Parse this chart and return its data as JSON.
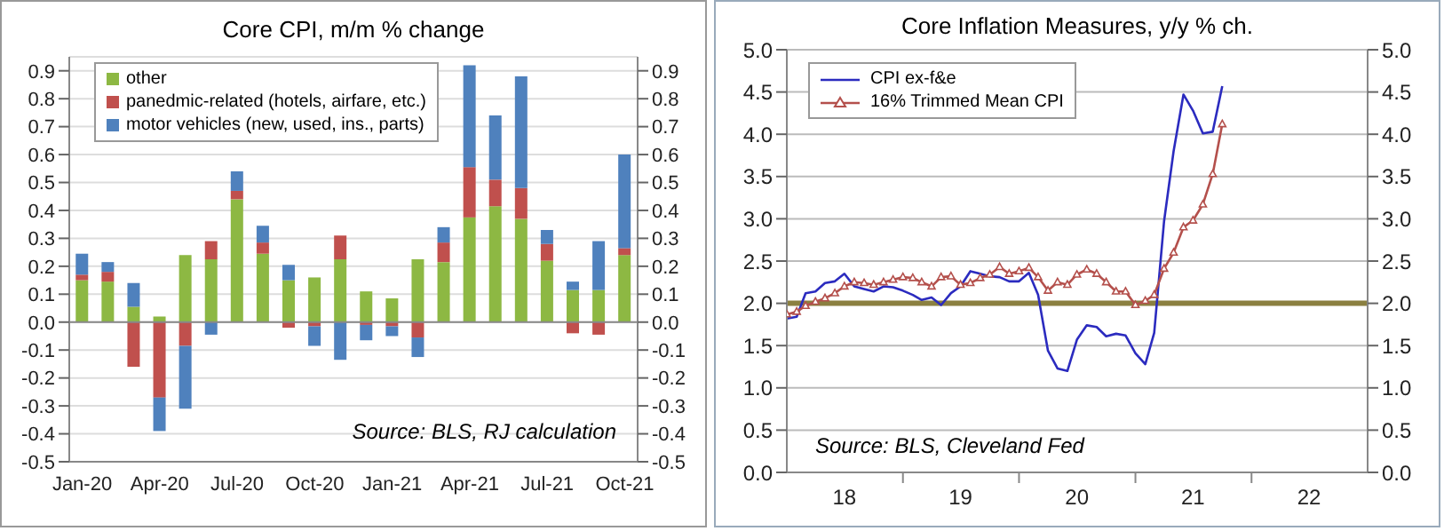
{
  "chart_data": [
    {
      "type": "bar",
      "title": "Core CPI, m/m % change",
      "stacked": true,
      "grid": "y",
      "legend": "top left",
      "categories": [
        "Jan-20",
        null,
        null,
        "Apr-20",
        null,
        null,
        "Jul-20",
        null,
        null,
        "Oct-20",
        null,
        null,
        "Jan-21",
        null,
        null,
        "Apr-21",
        null,
        null,
        "Jul-21",
        null,
        null,
        "Oct-21"
      ],
      "series": [
        {
          "name": "other",
          "color": "#8db843",
          "values": [
            0.15,
            0.145,
            0.055,
            0.02,
            0.24,
            0.225,
            0.44,
            0.245,
            0.15,
            0.16,
            0.225,
            0.11,
            0.085,
            0.225,
            0.215,
            0.375,
            0.415,
            0.37,
            0.22,
            0.115,
            0.115,
            0.24
          ]
        },
        {
          "name": "panedmic-related (hotels, airfare, etc.)",
          "color": "#c0504d",
          "values": [
            0.02,
            0.035,
            -0.16,
            -0.27,
            -0.085,
            0.065,
            0.03,
            0.04,
            -0.02,
            -0.015,
            0.085,
            -0.01,
            -0.015,
            -0.055,
            0.07,
            0.18,
            0.095,
            0.11,
            0.06,
            -0.04,
            -0.045,
            0.025
          ]
        },
        {
          "name": "motor vehicles (new, used, ins., parts)",
          "color": "#4f81bd",
          "values": [
            0.075,
            0.035,
            0.085,
            -0.12,
            -0.225,
            -0.045,
            0.07,
            0.06,
            0.055,
            -0.07,
            -0.135,
            -0.055,
            -0.035,
            -0.07,
            0.055,
            0.365,
            0.23,
            0.4,
            0.05,
            0.03,
            0.175,
            0.335
          ]
        }
      ],
      "ylim": [
        -0.5,
        0.95
      ],
      "yticks": [
        -0.5,
        -0.4,
        -0.3,
        -0.2,
        -0.1,
        {
          "value": 0,
          "label": "0.0"
        },
        0.1,
        0.2,
        0.3,
        0.4,
        0.5,
        0.6,
        0.7,
        0.8,
        0.9
      ],
      "y2lim": [
        -0.5,
        0.95
      ],
      "y2ticks": [
        -0.5,
        -0.4,
        -0.3,
        -0.2,
        -0.1,
        {
          "value": 0,
          "label": "0.0"
        },
        0.1,
        0.2,
        0.3,
        0.4,
        0.5,
        0.6,
        0.7,
        0.8,
        0.9
      ],
      "annotations": [
        "Source: BLS, RJ calculation"
      ]
    },
    {
      "type": "line",
      "title": "Core Inflation Measures, y/y % ch.",
      "grid": "y",
      "legend": "top left",
      "x": [
        "2018-01",
        "2018-02",
        "2018-03",
        "2018-04",
        "2018-05",
        "2018-06",
        "2018-07",
        "2018-08",
        "2018-09",
        "2018-10",
        "2018-11",
        "2018-12",
        "2019-01",
        "2019-02",
        "2019-03",
        "2019-04",
        "2019-05",
        "2019-06",
        "2019-07",
        "2019-08",
        "2019-09",
        "2019-10",
        "2019-11",
        "2019-12",
        "2020-01",
        "2020-02",
        "2020-03",
        "2020-04",
        "2020-05",
        "2020-06",
        "2020-07",
        "2020-08",
        "2020-09",
        "2020-10",
        "2020-11",
        "2020-12",
        "2021-01",
        "2021-02",
        "2021-03",
        "2021-04",
        "2021-05",
        "2021-06",
        "2021-07",
        "2021-08",
        "2021-09",
        "2021-10"
      ],
      "series": [
        {
          "name": "CPI ex-f&e",
          "color": "#2b2bbf",
          "marker": "none",
          "values": [
            1.82,
            1.84,
            2.12,
            2.14,
            2.24,
            2.26,
            2.35,
            2.2,
            2.17,
            2.14,
            2.2,
            2.19,
            2.15,
            2.1,
            2.04,
            2.07,
            1.98,
            2.12,
            2.2,
            2.38,
            2.35,
            2.32,
            2.31,
            2.26,
            2.26,
            2.36,
            2.1,
            1.44,
            1.23,
            1.2,
            1.57,
            1.74,
            1.72,
            1.61,
            1.64,
            1.62,
            1.41,
            1.28,
            1.65,
            2.97,
            3.8,
            4.47,
            4.28,
            4.01,
            4.03,
            4.57
          ]
        },
        {
          "name": "16% Trimmed Mean CPI",
          "color": "#b4504c",
          "marker": "triangle",
          "values": [
            1.87,
            1.9,
            1.97,
            2.02,
            2.06,
            2.12,
            2.2,
            2.25,
            2.24,
            2.22,
            2.25,
            2.28,
            2.31,
            2.3,
            2.25,
            2.2,
            2.31,
            2.32,
            2.22,
            2.24,
            2.3,
            2.34,
            2.43,
            2.35,
            2.38,
            2.42,
            2.31,
            2.15,
            2.25,
            2.22,
            2.34,
            2.4,
            2.35,
            2.25,
            2.14,
            2.14,
            1.98,
            2.03,
            2.1,
            2.41,
            2.6,
            2.9,
            2.98,
            3.17,
            3.53,
            4.12
          ]
        }
      ],
      "xlim": [
        "2018-01",
        "2023-01"
      ],
      "xticks": [
        {
          "value": "2018-07",
          "label": "18"
        },
        {
          "value": "2019-07",
          "label": "19"
        },
        {
          "value": "2020-07",
          "label": "20"
        },
        {
          "value": "2021-07",
          "label": "21"
        },
        {
          "value": "2022-07",
          "label": "22"
        },
        {
          "value": "2019-01",
          "label": null
        },
        {
          "value": "2020-01",
          "label": null
        },
        {
          "value": "2021-01",
          "label": null
        },
        {
          "value": "2022-01",
          "label": null
        }
      ],
      "ylim": [
        0,
        5
      ],
      "yticks": [
        {
          "value": 0,
          "label": "0.0"
        },
        0.5,
        {
          "value": 1,
          "label": "1.0"
        },
        1.5,
        {
          "value": 2,
          "label": "2.0"
        },
        2.5,
        {
          "value": 3,
          "label": "3.0"
        },
        3.5,
        {
          "value": 4,
          "label": "4.0"
        },
        4.5,
        {
          "value": 5,
          "label": "5.0"
        }
      ],
      "y2lim": [
        0,
        5
      ],
      "y2ticks": [
        {
          "value": 0,
          "label": "0.0"
        },
        0.5,
        {
          "value": 1,
          "label": "1.0"
        },
        1.5,
        {
          "value": 2,
          "label": "2.0"
        },
        2.5,
        {
          "value": 3,
          "label": "3.0"
        },
        3.5,
        {
          "value": 4,
          "label": "4.0"
        },
        4.5,
        {
          "value": 5,
          "label": "5.0"
        }
      ],
      "ref_lines": [
        {
          "axis": "y",
          "value": 2,
          "color": "#8b8040"
        }
      ],
      "annotations": [
        "Source: BLS, Cleveland Fed"
      ]
    }
  ]
}
